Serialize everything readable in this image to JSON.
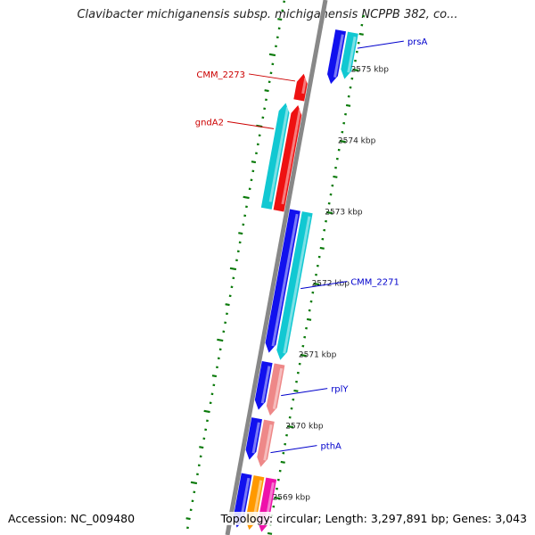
{
  "title": "Clavibacter michiganensis subsp. michiganensis NCPPB 382, co...",
  "accession": "Accession: NC_009480",
  "topology": "Topology: circular; Length: 3,297,891 bp; Genes: 3,043",
  "colors": {
    "backbone": "#888888",
    "tick": "#0a7a0a",
    "cds_blue": "#1111ee",
    "cds_cyan": "#11c8d2",
    "cds_red": "#ee1111",
    "cds_pink": "#ee8888",
    "cds_orange": "#ff9900",
    "cds_magenta": "#ee11aa",
    "label_red": "#cc0000",
    "label_blue": "#0000cc"
  },
  "scale": [
    {
      "label": "2575 kbp",
      "kbp": 2575
    },
    {
      "label": "2574 kbp",
      "kbp": 2574
    },
    {
      "label": "2573 kbp",
      "kbp": 2573
    },
    {
      "label": "2572 kbp",
      "kbp": 2572
    },
    {
      "label": "2571 kbp",
      "kbp": 2571
    },
    {
      "label": "2570 kbp",
      "kbp": 2570
    },
    {
      "label": "2569 kbp",
      "kbp": 2569
    }
  ],
  "features": [
    {
      "start": 2574.75,
      "end": 2575.5,
      "track": 2,
      "color": "cds_blue",
      "dir": "rev"
    },
    {
      "start": 2574.85,
      "end": 2575.5,
      "track": 3,
      "color": "cds_cyan",
      "dir": "rev"
    },
    {
      "start": 2574.45,
      "end": 2574.82,
      "track": -1,
      "color": "cds_red",
      "dir": "fwd"
    },
    {
      "start": 2572.9,
      "end": 2574.38,
      "track": -1,
      "color": "cds_red",
      "dir": "fwd"
    },
    {
      "start": 2572.9,
      "end": 2574.38,
      "track": -2,
      "color": "cds_cyan",
      "dir": "fwd"
    },
    {
      "start": 2570.95,
      "end": 2572.95,
      "track": 1,
      "color": "cds_blue",
      "dir": "rev"
    },
    {
      "start": 2570.88,
      "end": 2572.95,
      "track": 2,
      "color": "cds_cyan",
      "dir": "rev"
    },
    {
      "start": 2570.15,
      "end": 2570.82,
      "track": 1,
      "color": "cds_blue",
      "dir": "rev"
    },
    {
      "start": 2570.1,
      "end": 2570.82,
      "track": 2,
      "color": "cds_pink",
      "dir": "rev"
    },
    {
      "start": 2569.45,
      "end": 2570.03,
      "track": 1,
      "color": "cds_blue",
      "dir": "rev"
    },
    {
      "start": 2569.38,
      "end": 2570.03,
      "track": 2,
      "color": "cds_pink",
      "dir": "rev"
    },
    {
      "start": 2568.5,
      "end": 2569.25,
      "track": 1,
      "color": "cds_blue",
      "dir": "rev"
    },
    {
      "start": 2568.5,
      "end": 2569.25,
      "track": 2,
      "color": "cds_orange",
      "dir": "rev"
    },
    {
      "start": 2568.5,
      "end": 2569.25,
      "track": 3,
      "color": "cds_magenta",
      "dir": "rev"
    }
  ],
  "labels": [
    {
      "text": "prsA",
      "kbp": 2575.3,
      "track": 3,
      "side": "right",
      "color": "label_blue"
    },
    {
      "text": "CMM_2273",
      "kbp": 2574.7,
      "track": -1,
      "side": "left",
      "color": "label_red"
    },
    {
      "text": "gndA2",
      "kbp": 2574.0,
      "track": -2,
      "side": "left",
      "color": "label_red"
    },
    {
      "text": "CMM_2271",
      "kbp": 2571.9,
      "track": 2,
      "side": "right",
      "color": "label_blue"
    },
    {
      "text": "rplY",
      "kbp": 2570.4,
      "track": 2,
      "side": "right",
      "color": "label_blue"
    },
    {
      "text": "pthA",
      "kbp": 2569.6,
      "track": 2,
      "side": "right",
      "color": "label_blue"
    }
  ]
}
